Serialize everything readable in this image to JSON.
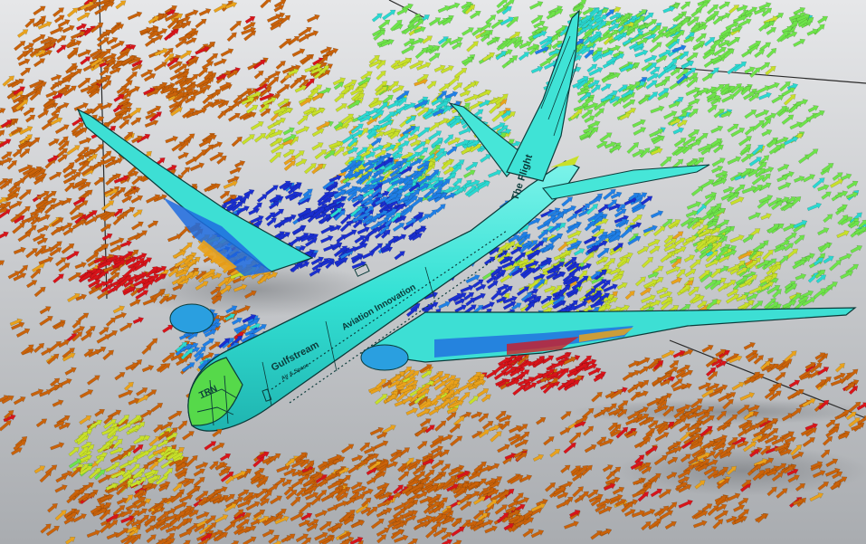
{
  "viewport": {
    "background_top": "#e6e7e9",
    "background_bottom": "#a9acb0"
  },
  "colormap": {
    "stops": [
      "#1a2fd0",
      "#1f7fe6",
      "#2ad8d0",
      "#6ee34a",
      "#c8e02a",
      "#e9a21c",
      "#c9620a",
      "#d8141a"
    ]
  },
  "aircraft": {
    "body_color": "#36e6d6",
    "outline_color": "#0b3b3a",
    "cockpit_color": "#56d94a",
    "livery_title": "Gulfstream",
    "livery_subtitle": "Air & Space",
    "livery_slogan": "Aviation Innovation",
    "tail_text": "The Flight",
    "nose_text": "TRN"
  }
}
